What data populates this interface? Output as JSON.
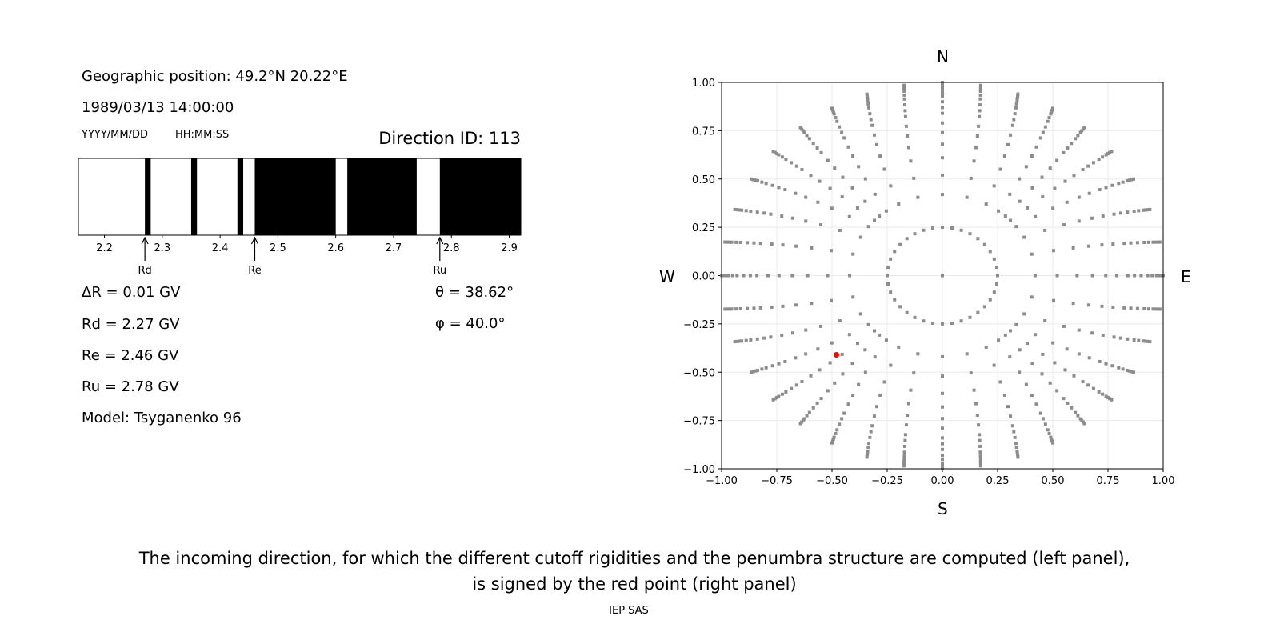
{
  "left_panel": {
    "geo_position": "Geographic position: 49.2°N 20.22°E",
    "datetime": "1989/03/13 14:00:00",
    "date_format": "YYYY/MM/DD",
    "time_format": "HH:MM:SS",
    "direction_id": "Direction ID: 113",
    "delta_r": "ΔR = 0.01 GV",
    "rd": "Rd = 2.27 GV",
    "re": "Re = 2.46 GV",
    "ru": "Ru = 2.78 GV",
    "model": "Model: Tsyganenko 96",
    "theta": "θ = 38.62°",
    "phi": "φ = 40.0°"
  },
  "right_panel": {
    "north": "N",
    "south": "S",
    "west": "W",
    "east": "E"
  },
  "caption": {
    "line1": "The incoming direction, for which the different cutoff rigidities and the penumbra structure are computed (left panel),",
    "line2": "is signed by the red point (right panel)",
    "credit": "IEP SAS"
  },
  "chart_data": [
    {
      "type": "bar",
      "subtype": "penumbra-strip",
      "xlim": [
        2.155,
        2.92
      ],
      "xticks": [
        "2.2",
        "2.3",
        "2.4",
        "2.5",
        "2.6",
        "2.7",
        "2.8",
        "2.9"
      ],
      "forbidden_intervals": [
        [
          2.27,
          2.28
        ],
        [
          2.35,
          2.36
        ],
        [
          2.43,
          2.44
        ],
        [
          2.46,
          2.6
        ],
        [
          2.62,
          2.74
        ],
        [
          2.78,
          2.92
        ]
      ],
      "forbidden_color": "#000000",
      "allowed_color": "#ffffff",
      "markers": [
        {
          "label": "Rd",
          "x": 2.27
        },
        {
          "label": "Re",
          "x": 2.46
        },
        {
          "label": "Ru",
          "x": 2.78
        }
      ]
    },
    {
      "type": "scatter",
      "xlim": [
        -1.0,
        1.0
      ],
      "ylim": [
        -1.0,
        1.0
      ],
      "xticks": [
        "−1.00",
        "−0.75",
        "−0.50",
        "−0.25",
        "0.00",
        "0.25",
        "0.50",
        "0.75",
        "1.00"
      ],
      "yticks": [
        "−1.00",
        "−0.75",
        "−0.50",
        "−0.25",
        "0.00",
        "0.25",
        "0.50",
        "0.75",
        "1.00"
      ],
      "grid": true,
      "point_color": "#8c8c8c",
      "grid_points": {
        "center": [
          0,
          0
        ],
        "inner_ring_radius": 0.25,
        "azimuth_step_deg": 10,
        "spoke_radii": [
          0.42,
          0.52,
          0.61,
          0.68,
          0.74,
          0.79,
          0.84,
          0.87,
          0.9,
          0.93,
          0.95,
          0.97,
          0.98,
          0.99,
          1.0
        ]
      },
      "highlight_point": {
        "x": -0.48,
        "y": -0.41,
        "color": "#ff0000"
      }
    }
  ]
}
